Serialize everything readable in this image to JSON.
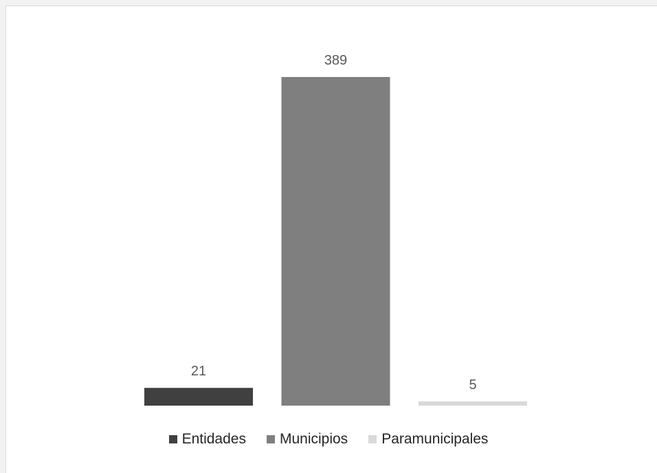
{
  "chart_data": {
    "type": "bar",
    "title": "",
    "xlabel": "",
    "ylabel": "",
    "categories": [
      "Entidades",
      "Municipios",
      "Paramunicipales"
    ],
    "values": [
      21,
      389,
      5
    ],
    "data_labels": [
      "21",
      "389",
      "5"
    ],
    "colors": [
      "#404040",
      "#7f7f7f",
      "#d9d9d9"
    ],
    "ylim": [
      0,
      400
    ],
    "grid": false,
    "legend_position": "bottom"
  }
}
